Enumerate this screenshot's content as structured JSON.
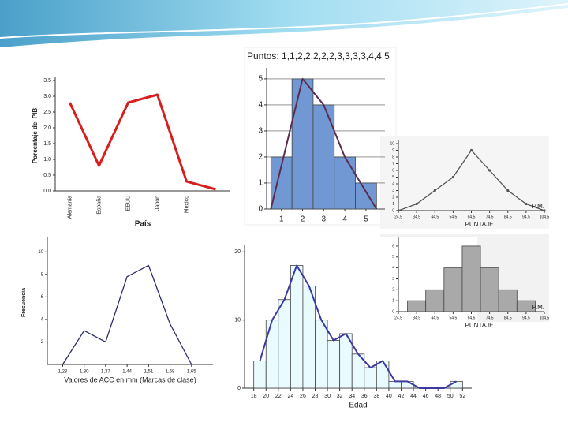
{
  "chart_data": [
    {
      "type": "line",
      "ylabel": "Porcentaje del PIB",
      "xlabel": "País",
      "categories": [
        "Alemania",
        "España",
        "EEUU",
        "Japón",
        "Mexico",
        null
      ],
      "values": [
        2.8,
        0.8,
        2.8,
        3.05,
        0.3,
        0.05
      ],
      "color": "#d81e1e",
      "ylim": [
        0,
        3.5
      ],
      "yticks": [
        {
          "value": 0,
          "label": "0.0"
        },
        0.5,
        {
          "value": 1,
          "label": "1.0"
        },
        1.5,
        {
          "value": 2,
          "label": "2.0"
        },
        2.5,
        {
          "value": 3,
          "label": "3.0"
        },
        3.5
      ]
    },
    {
      "type": "histogram",
      "title": "Puntos: 1,1,2,2,2,2,2,3,3,3,3,4,4,5",
      "bins": [
        0.5,
        1.5,
        2.5,
        3.5,
        4.5,
        5.5
      ],
      "counts": [
        2,
        5,
        4,
        2,
        1
      ],
      "color": "#7198d3",
      "polygon": {
        "x": [
          0.5,
          2,
          3,
          4,
          5.5
        ],
        "values": [
          0,
          5,
          4,
          2,
          0
        ],
        "color": "#5a2d4d"
      },
      "xlim": [
        0.3,
        5.9
      ],
      "xticks": [
        1,
        2,
        3,
        4,
        5
      ],
      "ylim": [
        0,
        5.3
      ],
      "yticks": [
        0,
        1,
        2,
        3,
        4,
        5
      ],
      "grid": true
    },
    {
      "type": "line",
      "xlabel": "PUNTAJE",
      "annotation": "P.M.",
      "x": [
        24.5,
        34.5,
        44.5,
        54.5,
        64.5,
        74.5,
        84.5,
        94.5,
        104.5
      ],
      "values": [
        0,
        1,
        3,
        5,
        9,
        6,
        3,
        1,
        0
      ],
      "color": "#555555",
      "markers": true,
      "xlim": [
        24.5,
        104.5
      ],
      "xticks": [
        24.5,
        34.5,
        44.5,
        54.5,
        64.5,
        74.5,
        84.5,
        94.5,
        104.5
      ],
      "ylim": [
        0,
        10
      ],
      "yticks": [
        0,
        1,
        2,
        3,
        4,
        5,
        6,
        7,
        8,
        9,
        10
      ]
    },
    {
      "type": "histogram",
      "xlabel": "PUNTAJE",
      "annotation": "P.M.",
      "bins": [
        29.5,
        39.5,
        49.5,
        59.5,
        69.5,
        79.5,
        89.5,
        99.5
      ],
      "counts": [
        1,
        2,
        4,
        6,
        4,
        2,
        1
      ],
      "color": "#a9a9a9",
      "xlim": [
        24.5,
        104.5
      ],
      "xticks": [
        24.5,
        34.5,
        44.5,
        54.5,
        64.5,
        74.5,
        84.5,
        94.5,
        104.5
      ],
      "ylim": [
        0,
        6.5
      ],
      "yticks": [
        0,
        1,
        2,
        3,
        4,
        5,
        6
      ]
    },
    {
      "type": "line",
      "ylabel": "Frecuencia",
      "xlabel": "Valores de ACC en mm (Marcas de clase)",
      "x": [
        1.23,
        1.3,
        1.37,
        1.44,
        1.51,
        1.58,
        1.65
      ],
      "values": [
        0,
        3,
        2,
        7.8,
        8.8,
        3.6,
        0
      ],
      "color": "#2b2b6b",
      "xlim": [
        1.18,
        1.72
      ],
      "xticks": [
        {
          "value": 1.23,
          "label": "1,23"
        },
        {
          "value": 1.3,
          "label": "1,30"
        },
        {
          "value": 1.37,
          "label": "1,37"
        },
        {
          "value": 1.44,
          "label": "1,44"
        },
        {
          "value": 1.51,
          "label": "1,51"
        },
        {
          "value": 1.58,
          "label": "1,58"
        },
        {
          "value": 1.65,
          "label": "1,65"
        }
      ],
      "ylim": [
        0,
        11
      ],
      "yticks": [
        2,
        4,
        6,
        8,
        10
      ]
    },
    {
      "type": "histogram",
      "xlabel": "Edad",
      "bins": [
        18,
        20,
        22,
        24,
        26,
        28,
        30,
        32,
        34,
        36,
        38,
        40,
        42,
        44,
        46,
        48,
        50,
        52
      ],
      "counts": [
        4,
        10,
        13,
        18,
        15,
        10,
        7,
        8,
        5,
        3,
        4,
        1,
        1,
        0,
        0,
        0,
        1
      ],
      "color": "#eafbff",
      "polygon": {
        "x": [
          19,
          21,
          23,
          25,
          27,
          29,
          31,
          33,
          35,
          37,
          39,
          41,
          43,
          45,
          47,
          49,
          51
        ],
        "values": [
          4,
          10,
          13,
          18,
          15,
          10,
          7,
          8,
          5,
          3,
          4,
          1,
          1,
          0,
          0,
          0,
          1
        ],
        "color": "#3a3aa0"
      },
      "xlim": [
        16.5,
        53.5
      ],
      "xticks": [
        18,
        20,
        22,
        24,
        26,
        28,
        30,
        32,
        34,
        36,
        38,
        40,
        42,
        44,
        46,
        48,
        50,
        52
      ],
      "ylim": [
        0,
        20.5
      ],
      "yticks": [
        0,
        10,
        20
      ]
    }
  ]
}
